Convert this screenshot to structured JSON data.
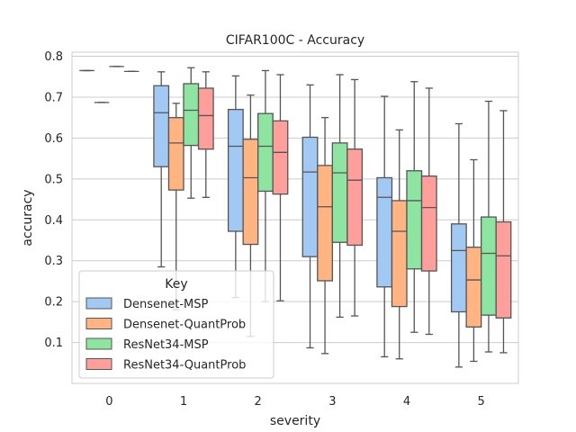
{
  "chart_data": {
    "type": "box",
    "title": "CIFAR100C - Accuracy",
    "xlabel": "severity",
    "ylabel": "accuracy",
    "ylim": [
      0.0,
      0.81
    ],
    "yticks": [
      "0.1",
      "0.2",
      "0.3",
      "0.4",
      "0.5",
      "0.6",
      "0.7",
      "0.8"
    ],
    "categories": [
      "0",
      "1",
      "2",
      "3",
      "4",
      "5"
    ],
    "grid": true,
    "legend": {
      "title": "Key",
      "placement": "lower-left"
    },
    "series": [
      {
        "name": "Densenet-MSP",
        "color": "#a1c9f4",
        "boxes": [
          {
            "min": 0.765,
            "q1": 0.765,
            "median": 0.765,
            "q3": 0.765,
            "max": 0.765
          },
          {
            "min": 0.285,
            "q1": 0.53,
            "median": 0.662,
            "q3": 0.728,
            "max": 0.762
          },
          {
            "min": 0.21,
            "q1": 0.372,
            "median": 0.58,
            "q3": 0.67,
            "max": 0.752
          },
          {
            "min": 0.087,
            "q1": 0.31,
            "median": 0.517,
            "q3": 0.602,
            "max": 0.73
          },
          {
            "min": 0.065,
            "q1": 0.236,
            "median": 0.455,
            "q3": 0.503,
            "max": 0.702
          },
          {
            "min": 0.04,
            "q1": 0.175,
            "median": 0.325,
            "q3": 0.39,
            "max": 0.635
          }
        ]
      },
      {
        "name": "Densenet-QuantProb",
        "color": "#ffb482",
        "boxes": [
          {
            "min": 0.687,
            "q1": 0.687,
            "median": 0.687,
            "q3": 0.687,
            "max": 0.687
          },
          {
            "min": 0.18,
            "q1": 0.473,
            "median": 0.588,
            "q3": 0.65,
            "max": 0.685
          },
          {
            "min": 0.115,
            "q1": 0.34,
            "median": 0.503,
            "q3": 0.597,
            "max": 0.705
          },
          {
            "min": 0.073,
            "q1": 0.251,
            "median": 0.432,
            "q3": 0.533,
            "max": 0.65
          },
          {
            "min": 0.06,
            "q1": 0.188,
            "median": 0.372,
            "q3": 0.447,
            "max": 0.62
          },
          {
            "min": 0.054,
            "q1": 0.138,
            "median": 0.253,
            "q3": 0.333,
            "max": 0.547
          }
        ]
      },
      {
        "name": "ResNet34-MSP",
        "color": "#8de5a1",
        "boxes": [
          {
            "min": 0.775,
            "q1": 0.775,
            "median": 0.775,
            "q3": 0.775,
            "max": 0.775
          },
          {
            "min": 0.453,
            "q1": 0.582,
            "median": 0.668,
            "q3": 0.733,
            "max": 0.772
          },
          {
            "min": 0.2,
            "q1": 0.47,
            "median": 0.58,
            "q3": 0.66,
            "max": 0.765
          },
          {
            "min": 0.162,
            "q1": 0.345,
            "median": 0.515,
            "q3": 0.588,
            "max": 0.755
          },
          {
            "min": 0.125,
            "q1": 0.28,
            "median": 0.447,
            "q3": 0.52,
            "max": 0.738
          },
          {
            "min": 0.077,
            "q1": 0.167,
            "median": 0.318,
            "q3": 0.407,
            "max": 0.69
          }
        ]
      },
      {
        "name": "ResNet34-QuantProb",
        "color": "#ff9f9b",
        "boxes": [
          {
            "min": 0.763,
            "q1": 0.763,
            "median": 0.763,
            "q3": 0.763,
            "max": 0.763
          },
          {
            "min": 0.455,
            "q1": 0.573,
            "median": 0.655,
            "q3": 0.722,
            "max": 0.762
          },
          {
            "min": 0.202,
            "q1": 0.463,
            "median": 0.565,
            "q3": 0.642,
            "max": 0.755
          },
          {
            "min": 0.165,
            "q1": 0.338,
            "median": 0.497,
            "q3": 0.573,
            "max": 0.743
          },
          {
            "min": 0.12,
            "q1": 0.275,
            "median": 0.43,
            "q3": 0.507,
            "max": 0.722
          },
          {
            "min": 0.075,
            "q1": 0.16,
            "median": 0.312,
            "q3": 0.395,
            "max": 0.667
          }
        ]
      }
    ]
  }
}
